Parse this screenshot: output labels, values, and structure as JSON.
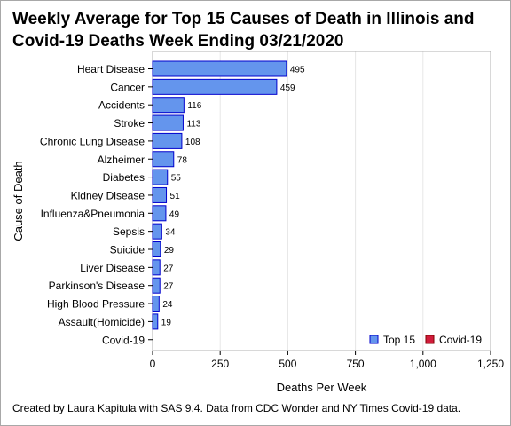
{
  "title": "Weekly Average for Top 15 Causes of Death in Illinois and Covid-19 Deaths Week Ending 03/21/2020",
  "footnote": "Created by Laura Kapitula with SAS 9.4. Data from CDC Wonder and NY Times Covid-19 data.",
  "chart_data": {
    "type": "bar",
    "orientation": "horizontal",
    "title": "Weekly Average for Top 15 Causes of Death in Illinois and Covid-19 Deaths Week Ending 03/21/2020",
    "xlabel": "Deaths Per Week",
    "ylabel": "Cause of Death",
    "xlim": [
      0,
      1250
    ],
    "xticks": [
      0,
      250,
      500,
      750,
      1000,
      1250
    ],
    "xtick_labels": [
      "0",
      "250",
      "500",
      "750",
      "1,000",
      "1,250"
    ],
    "grid": "vertical",
    "legend": "bottom-right",
    "categories": [
      "Heart Disease",
      "Cancer",
      "Accidents",
      "Stroke",
      "Chronic Lung Disease",
      "Alzheimer",
      "Diabetes",
      "Kidney Disease",
      "Influenza&Pneumonia",
      "Sepsis",
      "Suicide",
      "Liver Disease",
      "Parkinson's Disease",
      "High Blood Pressure",
      "Assault(Homicide)",
      "Covid-19"
    ],
    "series": [
      {
        "name": "Top 15",
        "color": "#6495ed",
        "edge": "#0000cc",
        "values": [
          495,
          459,
          116,
          113,
          108,
          78,
          55,
          51,
          49,
          34,
          29,
          27,
          27,
          24,
          19,
          null
        ],
        "labels": [
          "495",
          "459",
          "116",
          "113",
          "108",
          "78",
          "55",
          "51",
          "49",
          "34",
          "29",
          "27",
          "27",
          "24",
          "19",
          ""
        ]
      },
      {
        "name": "Covid-19",
        "color": "#d11b3b",
        "edge": "#800000",
        "values": [
          null,
          null,
          null,
          null,
          null,
          null,
          null,
          null,
          null,
          null,
          null,
          null,
          null,
          null,
          null,
          0
        ],
        "labels": [
          "",
          "",
          "",
          "",
          "",
          "",
          "",
          "",
          "",
          "",
          "",
          "",
          "",
          "",
          "",
          ""
        ]
      }
    ]
  }
}
